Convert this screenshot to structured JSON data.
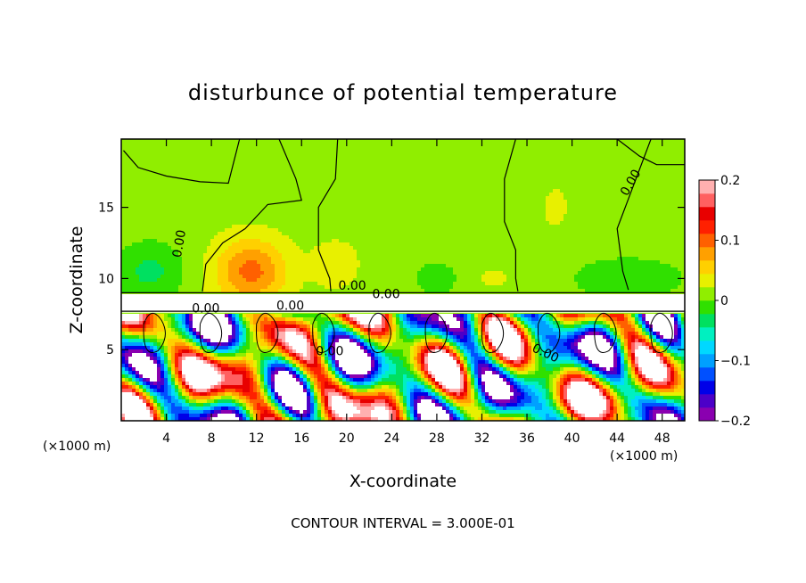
{
  "chart_data": {
    "type": "heatmap",
    "title": "disturbunce of potential temperature",
    "xlabel": "X-coordinate",
    "ylabel": "Z-coordinate",
    "x_unit": "(×1000 m)",
    "z_unit": "(×1000 m)",
    "xlim": [
      0,
      50
    ],
    "ylim": [
      0,
      19.8
    ],
    "x_ticks": [
      "4",
      "8",
      "12",
      "16",
      "20",
      "24",
      "28",
      "32",
      "36",
      "40",
      "44",
      "48"
    ],
    "y_ticks": [
      "5",
      "10",
      "15"
    ],
    "colorbar": {
      "range": [
        -0.2,
        0.2
      ],
      "tick_labels": [
        "0.2",
        "0.1",
        "0",
        "−0.1",
        "−0.2"
      ],
      "colors": [
        "#8a00b0",
        "#4b00c8",
        "#0000e8",
        "#0050ff",
        "#00a0ff",
        "#00d8ff",
        "#00f0c0",
        "#00e060",
        "#30e000",
        "#90ee00",
        "#e8f000",
        "#ffd000",
        "#ffa000",
        "#ff6000",
        "#ff2000",
        "#e80000",
        "#ff6060",
        "#ffb0b0"
      ]
    },
    "contour_labels": [
      "0.00",
      "0.00",
      "0.00",
      "0.00",
      "0.00",
      "0.00",
      "0.00",
      "0.00"
    ],
    "footnote": "CONTOUR INTERVAL = 3.000E-01"
  }
}
